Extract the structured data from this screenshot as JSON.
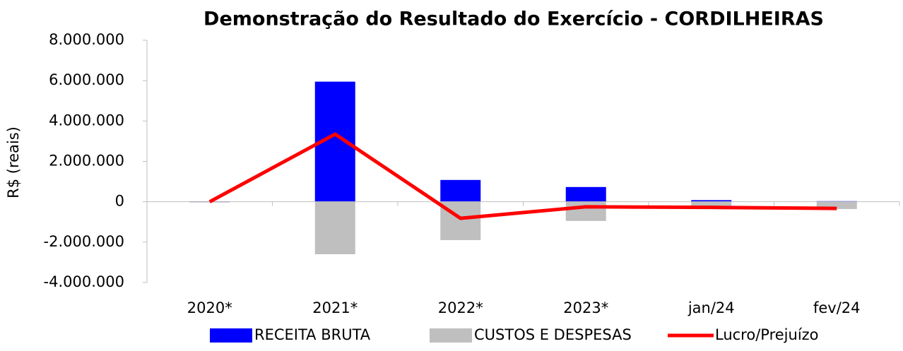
{
  "chart_data": {
    "type": "bar",
    "title": "Demonstração do Resultado do Exercício - CORDILHEIRAS",
    "y_label": "R$ (reais)",
    "categories": [
      "2020*",
      "2021*",
      "2022*",
      "2023*",
      "jan/24",
      "fev/24"
    ],
    "series": [
      {
        "name": "RECEITA BRUTA",
        "type": "bar",
        "color": "#0000ff",
        "values": [
          20000,
          5950000,
          1080000,
          730000,
          80000,
          30000
        ]
      },
      {
        "name": "CUSTOS E DESPESAS",
        "type": "bar",
        "color": "#bfbfbf",
        "values": [
          -20000,
          -2600000,
          -1900000,
          -950000,
          -340000,
          -360000
        ]
      },
      {
        "name": "Lucro/Prejuízo",
        "type": "line",
        "color": "#ff0000",
        "values": [
          0,
          3350000,
          -820000,
          -250000,
          -280000,
          -330000
        ]
      }
    ],
    "ylim": [
      -4000000,
      8000000
    ],
    "yticks": [
      {
        "value": -4000000,
        "label": "-4.000.000"
      },
      {
        "value": -2000000,
        "label": "-2.000.000"
      },
      0,
      {
        "value": 2000000,
        "label": "2.000.000"
      },
      {
        "value": 4000000,
        "label": "4.000.000"
      },
      {
        "value": 6000000,
        "label": "6.000.000"
      },
      {
        "value": 8000000,
        "label": "8.000.000"
      }
    ],
    "negative_tick_color": "#ff0000",
    "grid": false,
    "legend": "bottom"
  }
}
